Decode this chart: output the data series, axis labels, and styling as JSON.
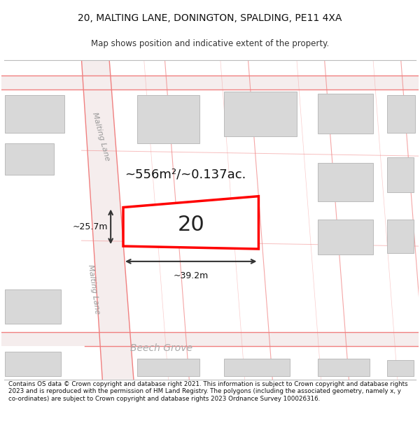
{
  "title_line1": "20, MALTING LANE, DONINGTON, SPALDING, PE11 4XA",
  "title_line2": "Map shows position and indicative extent of the property.",
  "footer_text": "Contains OS data © Crown copyright and database right 2021. This information is subject to Crown copyright and database rights 2023 and is reproduced with the permission of HM Land Registry. The polygons (including the associated geometry, namely x, y co-ordinates) are subject to Crown copyright and database rights 2023 Ordnance Survey 100026316.",
  "bg_color": "#ffffff",
  "map_bg": "#f0f0f0",
  "road_line_color": "#f08080",
  "building_color": "#d8d8d8",
  "building_outline": "#bbbbbb",
  "highlight_color": "#ff0000",
  "area_label": "~556m²/~0.137ac.",
  "width_label": "~39.2m",
  "height_label": "~25.7m",
  "road_label_malting_lane_upper": "Malting Lane",
  "road_label_malting_lane_lower": "Malting Lane",
  "road_label_beech_grove": "Beech Grove",
  "label_20": "20"
}
